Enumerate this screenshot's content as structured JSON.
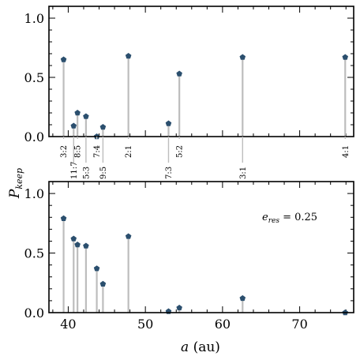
{
  "chart_data": [
    {
      "type": "scatter",
      "panel": "top",
      "annotation": "",
      "ylim": [
        0,
        1.1
      ],
      "xlim": [
        37.5,
        77
      ],
      "ytick_labels": [
        "0.0",
        "0.5",
        "1.0"
      ],
      "points": [
        {
          "a": 39.4,
          "p": 0.65
        },
        {
          "a": 40.7,
          "p": 0.09
        },
        {
          "a": 41.2,
          "p": 0.2
        },
        {
          "a": 42.3,
          "p": 0.17
        },
        {
          "a": 43.7,
          "p": 0.0
        },
        {
          "a": 44.5,
          "p": 0.08
        },
        {
          "a": 47.8,
          "p": 0.68
        },
        {
          "a": 53.0,
          "p": 0.11
        },
        {
          "a": 54.4,
          "p": 0.53
        },
        {
          "a": 62.6,
          "p": 0.67
        },
        {
          "a": 75.9,
          "p": 0.67
        }
      ]
    },
    {
      "type": "scatter",
      "panel": "bottom",
      "annotation": "e_res = 0.25",
      "ylim": [
        0,
        1.1
      ],
      "xlim": [
        37.5,
        77
      ],
      "ytick_labels": [
        "0.0",
        "0.5",
        "1.0"
      ],
      "xtick_labels": [
        "40",
        "50",
        "60",
        "70"
      ],
      "points": [
        {
          "a": 39.4,
          "p": 0.79
        },
        {
          "a": 40.7,
          "p": 0.62
        },
        {
          "a": 41.2,
          "p": 0.57
        },
        {
          "a": 42.3,
          "p": 0.56
        },
        {
          "a": 43.7,
          "p": 0.37
        },
        {
          "a": 44.5,
          "p": 0.24
        },
        {
          "a": 47.8,
          "p": 0.64
        },
        {
          "a": 53.0,
          "p": 0.01
        },
        {
          "a": 54.4,
          "p": 0.04
        },
        {
          "a": 62.6,
          "p": 0.12
        },
        {
          "a": 75.9,
          "p": 0.0
        }
      ]
    }
  ],
  "resonances": [
    {
      "label": "3:2",
      "a": 39.4,
      "row": "upper"
    },
    {
      "label": "11:7",
      "a": 40.7,
      "row": "lower"
    },
    {
      "label": "8:5",
      "a": 41.2,
      "row": "upper"
    },
    {
      "label": "5:3",
      "a": 42.3,
      "row": "lower"
    },
    {
      "label": "7:4",
      "a": 43.7,
      "row": "upper"
    },
    {
      "label": "9:5",
      "a": 44.5,
      "row": "lower"
    },
    {
      "label": "2:1",
      "a": 47.8,
      "row": "upper"
    },
    {
      "label": "7:3",
      "a": 53.0,
      "row": "lower"
    },
    {
      "label": "5:2",
      "a": 54.4,
      "row": "upper"
    },
    {
      "label": "3:1",
      "a": 62.6,
      "row": "lower"
    },
    {
      "label": "4:1",
      "a": 75.9,
      "row": "upper"
    }
  ],
  "ylabel": "P_keep",
  "xlabel": "a (au)",
  "colors": {
    "marker": "#2b4f6e",
    "stem": "#bdbdbd",
    "axis": "#000000"
  }
}
